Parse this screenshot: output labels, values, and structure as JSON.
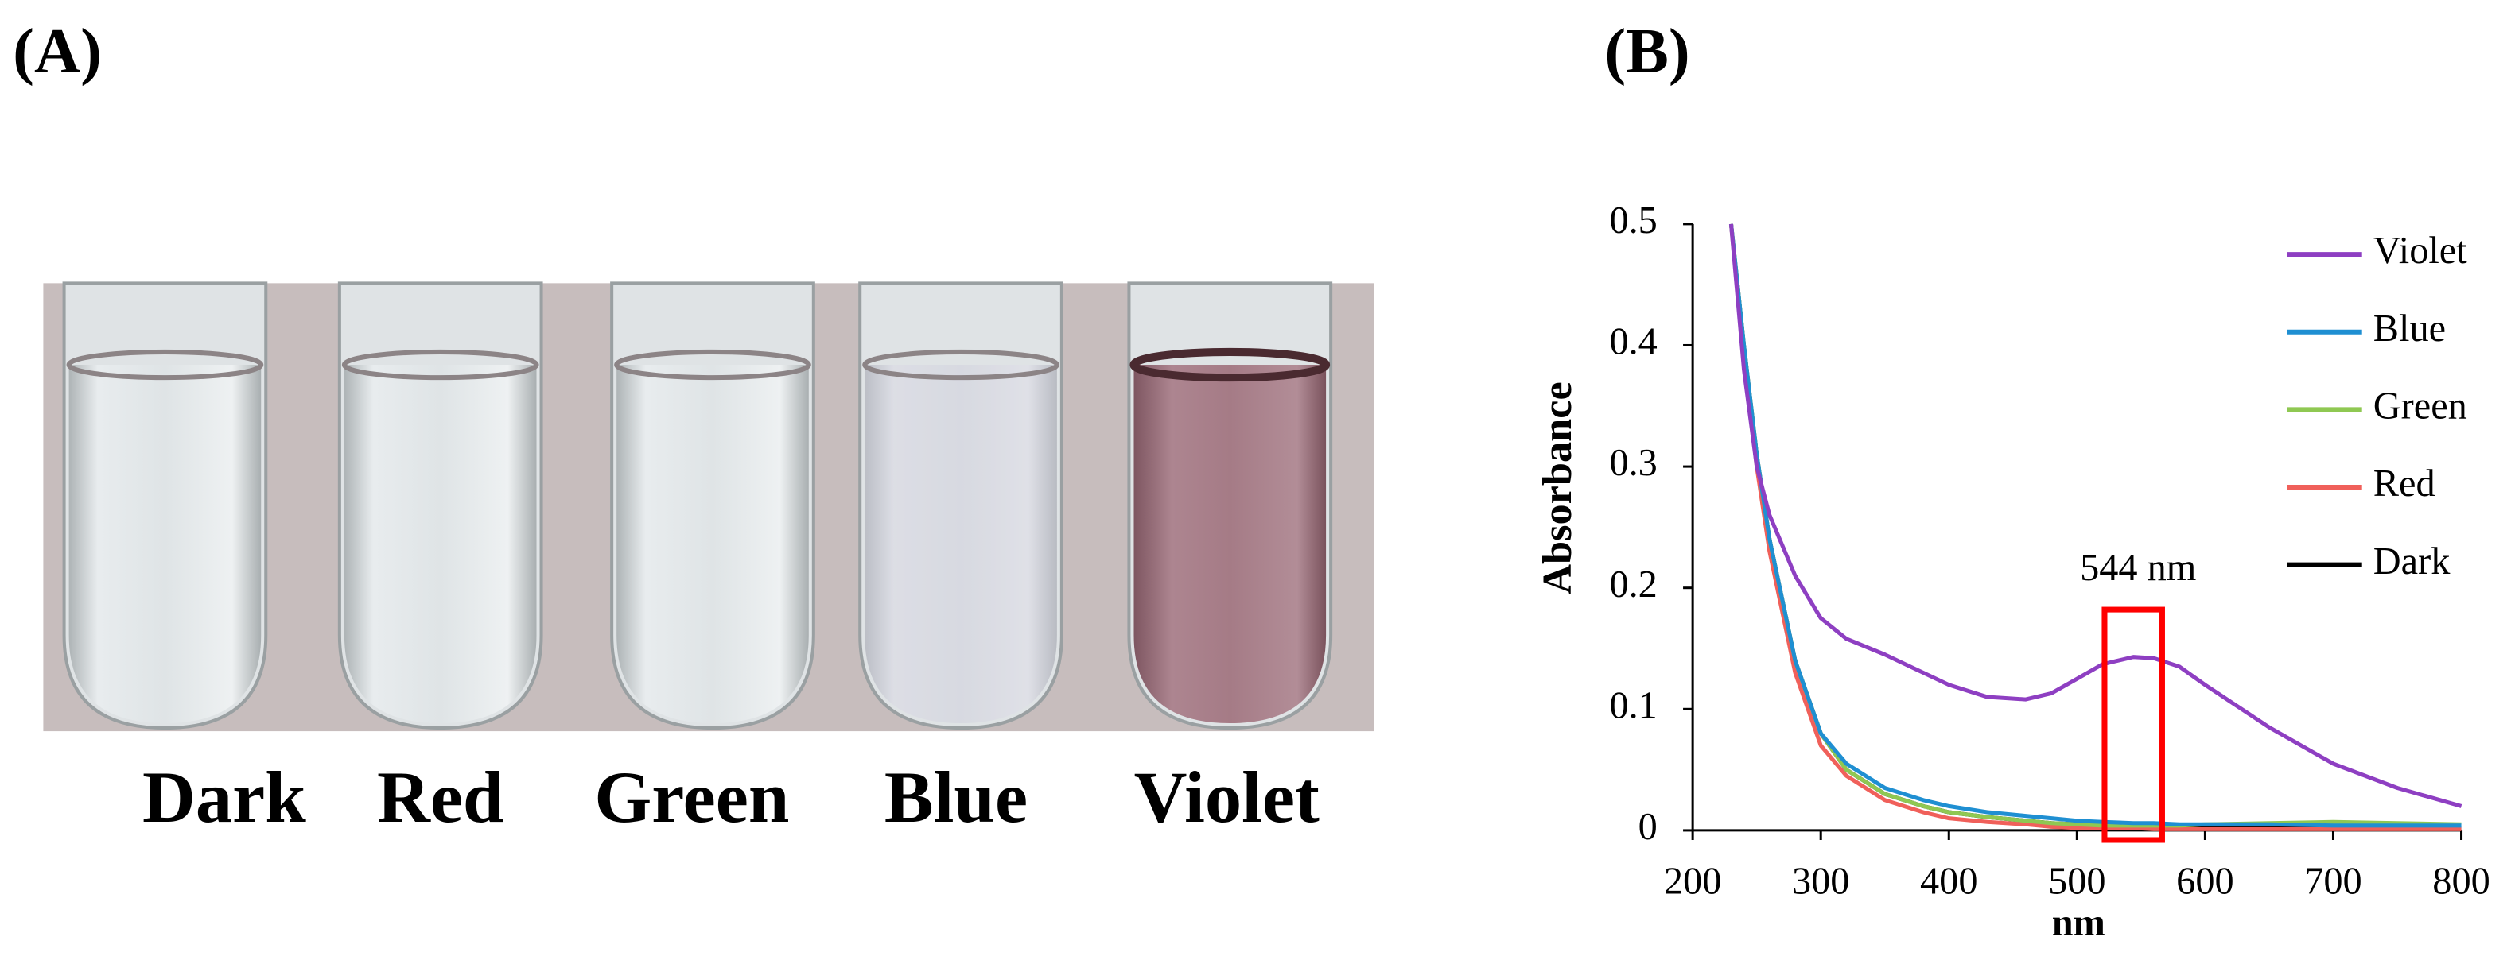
{
  "panels": {
    "a_label": "(A)",
    "b_label": "(B)",
    "photo_labels": [
      "Dark",
      "Red",
      "Green",
      "Blue",
      "Violet"
    ]
  },
  "chart_data": {
    "type": "line",
    "legend": "right",
    "x_label": "nm",
    "y_label": "Absorbance",
    "annotation": {
      "text": "544 nm",
      "x": 544
    },
    "x": [
      230,
      240,
      250,
      260,
      280,
      300,
      320,
      350,
      380,
      400,
      430,
      460,
      480,
      500,
      520,
      544,
      560,
      580,
      600,
      650,
      700,
      750,
      800
    ],
    "series": [
      {
        "name": "Violet",
        "color": "#8e3fc2",
        "values": [
          0.5,
          0.38,
          0.3,
          0.26,
          0.21,
          0.175,
          0.158,
          0.145,
          0.13,
          0.12,
          0.11,
          0.108,
          0.113,
          0.125,
          0.137,
          0.143,
          0.142,
          0.135,
          0.12,
          0.085,
          0.055,
          0.035,
          0.02
        ]
      },
      {
        "name": "Blue",
        "color": "#1f8fd2",
        "values": [
          0.5,
          0.4,
          0.31,
          0.24,
          0.14,
          0.08,
          0.055,
          0.035,
          0.025,
          0.02,
          0.015,
          0.012,
          0.01,
          0.008,
          0.007,
          0.006,
          0.006,
          0.005,
          0.005,
          0.005,
          0.004,
          0.004,
          0.004
        ]
      },
      {
        "name": "Green",
        "color": "#8fc852",
        "values": [
          0.5,
          0.4,
          0.31,
          0.24,
          0.14,
          0.08,
          0.05,
          0.03,
          0.02,
          0.015,
          0.011,
          0.008,
          0.006,
          0.005,
          0.004,
          0.004,
          0.004,
          0.004,
          0.005,
          0.006,
          0.007,
          0.006,
          0.005
        ]
      },
      {
        "name": "Red",
        "color": "#f0605a",
        "values": [
          0.5,
          0.39,
          0.3,
          0.23,
          0.13,
          0.07,
          0.045,
          0.025,
          0.015,
          0.01,
          0.007,
          0.005,
          0.003,
          0.002,
          0.002,
          0.002,
          0.001,
          0.001,
          0.001,
          0.001,
          0.001,
          0.001,
          0.001
        ]
      },
      {
        "name": "Dark",
        "color": "#000000",
        "values": [
          0.5,
          0.4,
          0.31,
          0.24,
          0.14,
          0.08,
          0.05,
          0.03,
          0.02,
          0.015,
          0.011,
          0.008,
          0.006,
          0.005,
          0.004,
          0.004,
          0.003,
          0.003,
          0.003,
          0.002,
          0.002,
          0.002,
          0.002
        ]
      }
    ],
    "xlim": [
      200,
      800
    ],
    "xticks": [
      200,
      300,
      400,
      500,
      600,
      700,
      800
    ],
    "ylim": [
      0,
      0.5
    ],
    "yticks": [
      0,
      0.1,
      0.2,
      0.3,
      0.4,
      0.5
    ]
  }
}
